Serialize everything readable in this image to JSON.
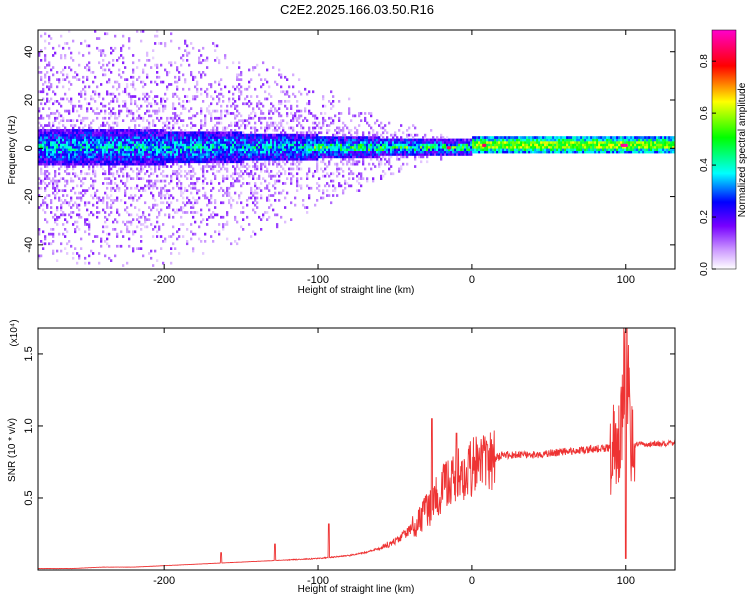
{
  "figure": {
    "title": "C2E2.2025.166.03.50.R16"
  },
  "chart_data": [
    {
      "type": "heatmap",
      "title": "C2E2.2025.166.03.50.R16",
      "xlabel": "Height of straight line (km)",
      "ylabel": "Frequency (Hz)",
      "xlim": [
        -282,
        132
      ],
      "ylim": [
        -50,
        49
      ],
      "x_ticks": [
        -200,
        -100,
        0,
        100
      ],
      "x_tick_labels": [
        "-200",
        "-100",
        "0",
        "100"
      ],
      "y_ticks": [
        -40,
        -20,
        0,
        20,
        40
      ],
      "y_tick_labels": [
        "-40",
        "-20",
        "0",
        "20",
        "40"
      ],
      "colorbar": {
        "label": "Normalized spectral amplitude",
        "range": [
          0,
          0.92
        ],
        "ticks": [
          0,
          0.2,
          0.4,
          0.6,
          0.8
        ],
        "tick_labels": [
          "0.0",
          "0.2",
          "0.4",
          "0.6",
          "0.8"
        ],
        "colormap": [
          "#ffffff",
          "#cc99ff",
          "#7700ff",
          "#0000ff",
          "#00ffff",
          "#00ff00",
          "#ffff00",
          "#ff0000",
          "#ff00cc"
        ]
      },
      "spread_envelope_hz": {
        "x": [
          -282,
          -200,
          -150,
          -100,
          -60,
          -30,
          -10,
          0,
          132
        ],
        "scatter_half_width": [
          49,
          49,
          40,
          25,
          15,
          8,
          3,
          2,
          2
        ],
        "core_half_width": [
          7,
          7,
          6,
          5,
          4,
          3,
          3,
          3,
          3
        ]
      },
      "peak_amplitude_points": [
        {
          "x": -15,
          "y": 0,
          "value": 0.85
        },
        {
          "x": 8,
          "y": 1,
          "value": 0.85
        },
        {
          "x": 98,
          "y": 1,
          "value": 0.88
        },
        {
          "x": 100,
          "y": 1,
          "value": 0.9
        }
      ],
      "grid": false
    },
    {
      "type": "line",
      "xlabel": "Height of straight line (km)",
      "ylabel": "SNR (10 * v/v)",
      "y_scale_label": "(x10⁴)",
      "xlim": [
        -282,
        132
      ],
      "ylim": [
        0,
        1.68
      ],
      "x_ticks": [
        -200,
        -100,
        0,
        100
      ],
      "x_tick_labels": [
        "-200",
        "-100",
        "0",
        "100"
      ],
      "y_ticks": [
        0.5,
        1.0,
        1.5
      ],
      "y_tick_labels": [
        "0.5",
        "1.0",
        "1.5"
      ],
      "color": "#ee3333",
      "series": [
        {
          "x": [
            -282,
            -260,
            -240,
            -220,
            -200,
            -180,
            -160,
            -140,
            -120,
            -100,
            -90,
            -80,
            -70,
            -60,
            -50,
            -40,
            -30,
            -20,
            -10,
            0,
            10,
            20,
            30,
            40,
            60,
            80,
            95,
            98,
            100,
            103,
            110,
            132
          ],
          "values": [
            0.01,
            0.01,
            0.02,
            0.02,
            0.03,
            0.04,
            0.05,
            0.06,
            0.07,
            0.08,
            0.09,
            0.1,
            0.12,
            0.15,
            0.2,
            0.28,
            0.4,
            0.55,
            0.65,
            0.7,
            0.75,
            0.8,
            0.8,
            0.8,
            0.82,
            0.84,
            0.85,
            1.1,
            1.68,
            0.88,
            0.87,
            0.88
          ],
          "spikes": [
            {
              "x": -163,
              "value": 0.12
            },
            {
              "x": -128,
              "value": 0.18
            },
            {
              "x": -93,
              "value": 0.32
            },
            {
              "x": -26,
              "value": 1.05
            },
            {
              "x": -10,
              "value": 0.95
            },
            {
              "x": 10,
              "value": 0.87
            },
            {
              "x": 100,
              "value": 0.08
            }
          ]
        }
      ],
      "grid": false
    }
  ]
}
